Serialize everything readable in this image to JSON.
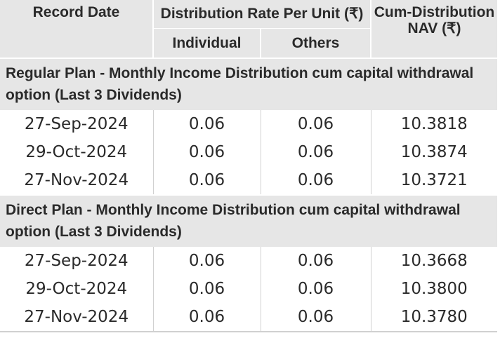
{
  "header": {
    "record_date": "Record Date",
    "distribution_rate": "Distribution Rate Per Unit (₹)",
    "individual": "Individual",
    "others": "Others",
    "cum_nav_line1": "Cum-Distribution",
    "cum_nav_line2": "NAV (₹)"
  },
  "sections": [
    {
      "title": "Regular Plan - Monthly Income Distribution cum capital withdrawal option (Last 3 Dividends)",
      "rows": [
        {
          "date": "27-Sep-2024",
          "individual": "0.06",
          "others": "0.06",
          "nav": "10.3818"
        },
        {
          "date": "29-Oct-2024",
          "individual": "0.06",
          "others": "0.06",
          "nav": "10.3874"
        },
        {
          "date": "27-Nov-2024",
          "individual": "0.06",
          "others": "0.06",
          "nav": "10.3721"
        }
      ]
    },
    {
      "title": "Direct Plan - Monthly Income Distribution cum capital withdrawal option (Last 3 Dividends)",
      "rows": [
        {
          "date": "27-Sep-2024",
          "individual": "0.06",
          "others": "0.06",
          "nav": "10.3668"
        },
        {
          "date": "29-Oct-2024",
          "individual": "0.06",
          "others": "0.06",
          "nav": "10.3800"
        },
        {
          "date": "27-Nov-2024",
          "individual": "0.06",
          "others": "0.06",
          "nav": "10.3780"
        }
      ]
    }
  ]
}
